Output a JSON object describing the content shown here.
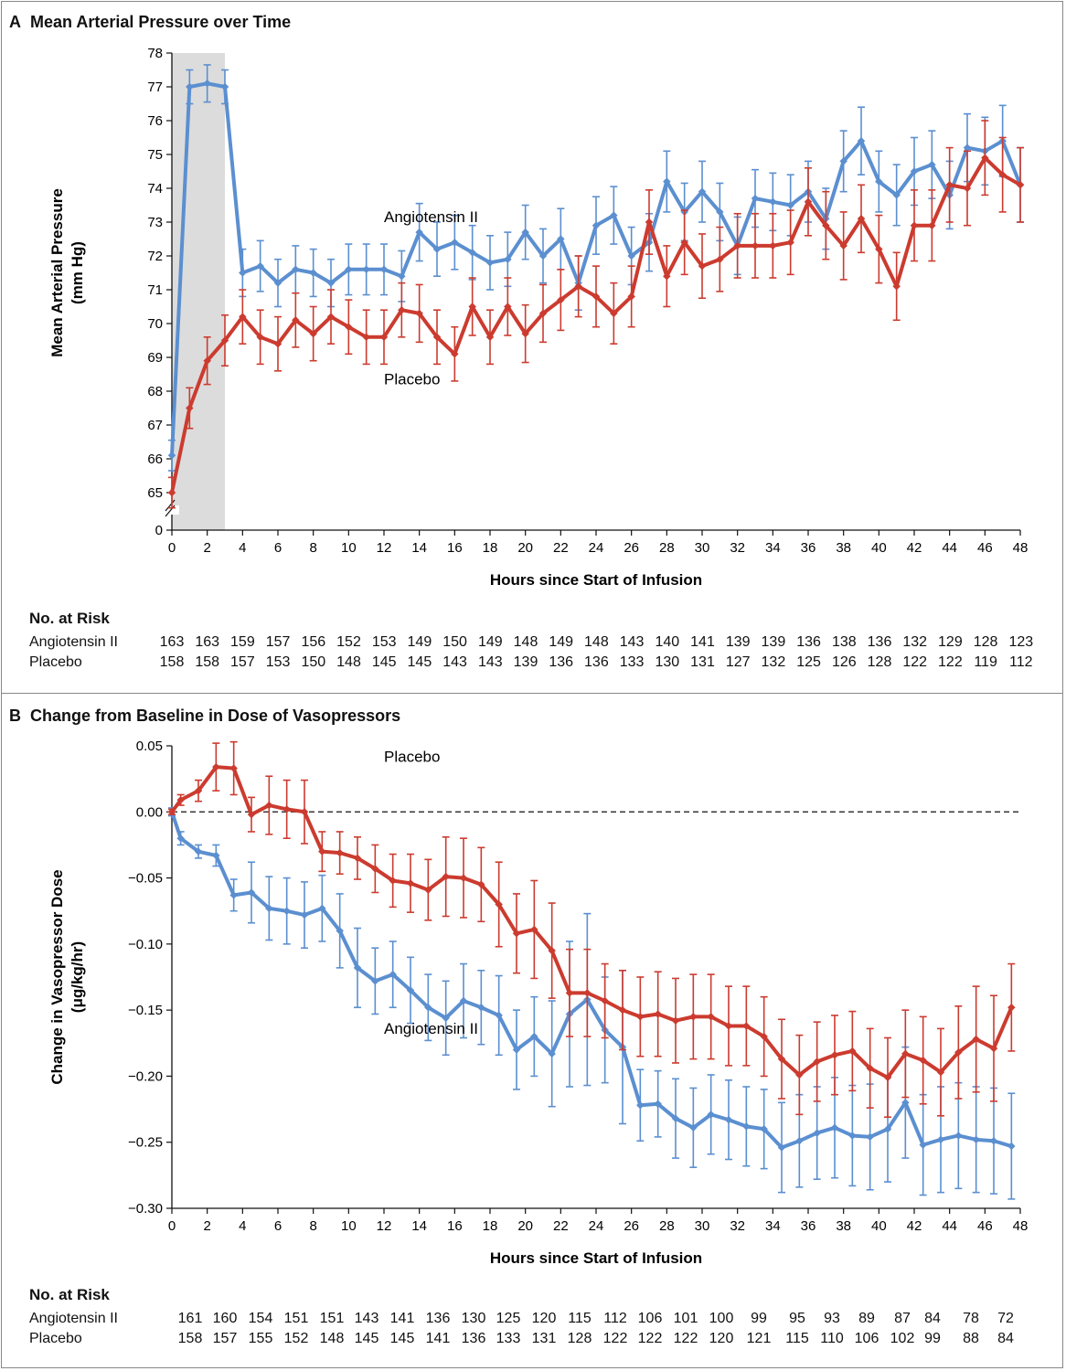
{
  "panels": {
    "A": {
      "letter": "A",
      "title": "Mean Arterial Pressure over Time",
      "risk_heading": "No. at Risk",
      "risk_rows": [
        {
          "name": "Angiotensin II",
          "values": [
            "163",
            "163",
            "159",
            "157",
            "156",
            "152",
            "153",
            "149",
            "150",
            "149",
            "148",
            "149",
            "148",
            "143",
            "140",
            "141",
            "139",
            "139",
            "136",
            "138",
            "136",
            "132",
            "129",
            "128",
            "123"
          ]
        },
        {
          "name": "Placebo",
          "values": [
            "158",
            "158",
            "157",
            "153",
            "150",
            "148",
            "145",
            "145",
            "143",
            "143",
            "139",
            "136",
            "136",
            "133",
            "130",
            "131",
            "127",
            "132",
            "125",
            "126",
            "128",
            "122",
            "122",
            "119",
            "112"
          ]
        }
      ]
    },
    "B": {
      "letter": "B",
      "title": "Change from Baseline in Dose of Vasopressors",
      "risk_heading": "No. at Risk",
      "risk_rows": [
        {
          "name": "Angiotensin II",
          "values": [
            "161",
            "160",
            "154",
            "151",
            "151",
            "143",
            "141",
            "136",
            "130",
            "125",
            "120",
            "115",
            "112",
            "106",
            "101",
            "100",
            "99",
            "95",
            "93",
            "89",
            "87",
            "84",
            "78",
            "72"
          ]
        },
        {
          "name": "Placebo",
          "values": [
            "158",
            "157",
            "155",
            "152",
            "148",
            "145",
            "145",
            "141",
            "136",
            "133",
            "131",
            "128",
            "122",
            "122",
            "122",
            "120",
            "121",
            "115",
            "110",
            "106",
            "102",
            "99",
            "88",
            "84"
          ]
        }
      ]
    }
  },
  "chart_data": [
    {
      "type": "line",
      "title": "Mean Arterial Pressure over Time",
      "xlabel": "Hours since Start of Infusion",
      "ylabel": "Mean Arterial Pressure (mm Hg)",
      "xlim": [
        0,
        48
      ],
      "ylim": [
        65,
        78
      ],
      "y_axis_break": true,
      "x_ticks": [
        0,
        2,
        4,
        6,
        8,
        10,
        12,
        14,
        16,
        18,
        20,
        22,
        24,
        26,
        28,
        30,
        32,
        34,
        36,
        38,
        40,
        42,
        44,
        46,
        48
      ],
      "y_ticks": [
        65,
        66,
        67,
        68,
        69,
        70,
        71,
        72,
        73,
        74,
        75,
        76,
        77,
        78
      ],
      "y_break_label": "0",
      "shaded_region_x": [
        0,
        3
      ],
      "series": [
        {
          "name": "Angiotensin II",
          "color": "#5b8fd0",
          "x": [
            0,
            1,
            2,
            3,
            4,
            5,
            6,
            7,
            8,
            9,
            10,
            11,
            12,
            13,
            14,
            15,
            16,
            17,
            18,
            19,
            20,
            21,
            22,
            23,
            24,
            25,
            26,
            27,
            28,
            29,
            30,
            31,
            32,
            33,
            34,
            35,
            36,
            37,
            38,
            39,
            40,
            41,
            42,
            43,
            44,
            45,
            46,
            47,
            48
          ],
          "y": [
            66.1,
            77.0,
            77.1,
            77.0,
            71.5,
            71.7,
            71.2,
            71.6,
            71.5,
            71.2,
            71.6,
            71.6,
            71.6,
            71.4,
            72.7,
            72.2,
            72.4,
            72.1,
            71.8,
            71.9,
            72.7,
            72.0,
            72.5,
            71.2,
            72.9,
            73.2,
            72.0,
            72.4,
            74.2,
            73.3,
            73.9,
            73.3,
            72.3,
            73.7,
            73.6,
            73.5,
            73.9,
            73.1,
            74.8,
            75.4,
            74.2,
            73.8,
            74.5,
            74.7,
            73.8,
            75.2,
            75.1,
            75.4,
            74.1
          ],
          "err": [
            0.45,
            0.5,
            0.55,
            0.5,
            0.7,
            0.75,
            0.7,
            0.7,
            0.7,
            0.7,
            0.75,
            0.75,
            0.75,
            0.75,
            0.85,
            0.8,
            0.8,
            0.8,
            0.8,
            0.8,
            0.8,
            0.8,
            0.9,
            0.8,
            0.85,
            0.85,
            0.85,
            0.85,
            0.9,
            0.85,
            0.9,
            0.85,
            0.85,
            0.85,
            0.85,
            0.9,
            0.9,
            0.9,
            0.9,
            1.0,
            0.9,
            0.9,
            1.0,
            1.0,
            1.0,
            1.0,
            1.0,
            1.05,
            1.1
          ]
        },
        {
          "name": "Placebo",
          "color": "#cc3b2f",
          "x": [
            0,
            1,
            2,
            3,
            4,
            5,
            6,
            7,
            8,
            9,
            10,
            11,
            12,
            13,
            14,
            15,
            16,
            17,
            18,
            19,
            20,
            21,
            22,
            23,
            24,
            25,
            26,
            27,
            28,
            29,
            30,
            31,
            32,
            33,
            34,
            35,
            36,
            37,
            38,
            39,
            40,
            41,
            42,
            43,
            44,
            45,
            46,
            47,
            48
          ],
          "y": [
            65.0,
            67.5,
            68.9,
            69.5,
            70.2,
            69.6,
            69.4,
            70.1,
            69.7,
            70.2,
            69.9,
            69.6,
            69.6,
            70.4,
            70.3,
            69.6,
            69.1,
            70.5,
            69.6,
            70.5,
            69.7,
            70.3,
            70.7,
            71.1,
            70.8,
            70.3,
            70.8,
            73.0,
            71.4,
            72.4,
            71.7,
            71.9,
            72.3,
            72.3,
            72.3,
            72.4,
            73.6,
            72.9,
            72.3,
            73.1,
            72.2,
            71.1,
            72.9,
            72.9,
            74.1,
            74.0,
            74.9,
            74.4,
            74.1
          ],
          "err": [
            0.45,
            0.6,
            0.7,
            0.75,
            0.8,
            0.8,
            0.8,
            0.8,
            0.8,
            0.8,
            0.8,
            0.8,
            0.8,
            0.8,
            0.85,
            0.8,
            0.8,
            0.85,
            0.8,
            0.85,
            0.85,
            0.85,
            0.9,
            0.9,
            0.9,
            0.9,
            0.9,
            0.95,
            0.9,
            0.95,
            0.95,
            0.95,
            0.95,
            0.95,
            0.95,
            0.95,
            1.0,
            1.0,
            1.0,
            1.0,
            1.0,
            1.0,
            1.05,
            1.05,
            1.1,
            1.1,
            1.1,
            1.1,
            1.1
          ]
        }
      ],
      "annotations": [
        {
          "text": "Angiotensin II",
          "x": 12,
          "y": 73.0
        },
        {
          "text": "Placebo",
          "x": 12,
          "y": 68.2
        }
      ]
    },
    {
      "type": "line",
      "title": "Change from Baseline in Dose of Vasopressors",
      "xlabel": "Hours since Start of Infusion",
      "ylabel": "Change in Vasopressor Dose (μg/kg/hr)",
      "xlim": [
        0,
        48
      ],
      "ylim": [
        -0.3,
        0.05
      ],
      "x_ticks": [
        0,
        2,
        4,
        6,
        8,
        10,
        12,
        14,
        16,
        18,
        20,
        22,
        24,
        26,
        28,
        30,
        32,
        34,
        36,
        38,
        40,
        42,
        44,
        46,
        48
      ],
      "y_ticks": [
        0.05,
        0.0,
        -0.05,
        -0.1,
        -0.15,
        -0.2,
        -0.25,
        -0.3
      ],
      "y_tick_labels": [
        "0.05",
        "0.00",
        "−0.05",
        "−0.10",
        "−0.15",
        "−0.20",
        "−0.25",
        "−0.30"
      ],
      "reference_line_y": 0,
      "series": [
        {
          "name": "Angiotensin II",
          "color": "#5b8fd0",
          "x": [
            0,
            0.5,
            1.5,
            2.5,
            3.5,
            4.5,
            5.5,
            6.5,
            7.5,
            8.5,
            9.5,
            10.5,
            11.5,
            12.5,
            13.5,
            14.5,
            15.5,
            16.5,
            17.5,
            18.5,
            19.5,
            20.5,
            21.5,
            22.5,
            23.5,
            24.5,
            25.5,
            26.5,
            27.5,
            28.5,
            29.5,
            30.5,
            31.5,
            32.5,
            33.5,
            34.5,
            35.5,
            36.5,
            37.5,
            38.5,
            39.5,
            40.5,
            41.5,
            42.5,
            43.5,
            44.5,
            45.5,
            46.5,
            47.5
          ],
          "y": [
            0,
            -0.02,
            -0.03,
            -0.033,
            -0.063,
            -0.061,
            -0.073,
            -0.075,
            -0.078,
            -0.073,
            -0.09,
            -0.118,
            -0.128,
            -0.123,
            -0.135,
            -0.148,
            -0.156,
            -0.143,
            -0.148,
            -0.154,
            -0.18,
            -0.17,
            -0.183,
            -0.153,
            -0.142,
            -0.165,
            -0.178,
            -0.222,
            -0.221,
            -0.232,
            -0.239,
            -0.229,
            -0.233,
            -0.238,
            -0.24,
            -0.254,
            -0.249,
            -0.243,
            -0.239,
            -0.245,
            -0.246,
            -0.24,
            -0.22,
            -0.252,
            -0.248,
            -0.245,
            -0.248,
            -0.249,
            -0.253
          ],
          "err": [
            0.003,
            0.005,
            0.005,
            0.008,
            0.012,
            0.023,
            0.024,
            0.025,
            0.025,
            0.025,
            0.028,
            0.03,
            0.025,
            0.025,
            0.025,
            0.025,
            0.028,
            0.028,
            0.028,
            0.03,
            0.03,
            0.03,
            0.04,
            0.055,
            0.065,
            0.04,
            0.058,
            0.027,
            0.025,
            0.03,
            0.03,
            0.03,
            0.03,
            0.03,
            0.03,
            0.034,
            0.035,
            0.035,
            0.038,
            0.038,
            0.04,
            0.04,
            0.042,
            0.038,
            0.04,
            0.04,
            0.04,
            0.04,
            0.04
          ]
        },
        {
          "name": "Placebo",
          "color": "#cc3b2f",
          "x": [
            0,
            0.5,
            1.5,
            2.5,
            3.5,
            4.5,
            5.5,
            6.5,
            7.5,
            8.5,
            9.5,
            10.5,
            11.5,
            12.5,
            13.5,
            14.5,
            15.5,
            16.5,
            17.5,
            18.5,
            19.5,
            20.5,
            21.5,
            22.5,
            23.5,
            24.5,
            25.5,
            26.5,
            27.5,
            28.5,
            29.5,
            30.5,
            31.5,
            32.5,
            33.5,
            34.5,
            35.5,
            36.5,
            37.5,
            38.5,
            39.5,
            40.5,
            41.5,
            42.5,
            43.5,
            44.5,
            45.5,
            46.5,
            47.5
          ],
          "y": [
            0,
            0.009,
            0.016,
            0.034,
            0.033,
            -0.002,
            0.005,
            0.002,
            0.0,
            -0.03,
            -0.031,
            -0.035,
            -0.043,
            -0.052,
            -0.054,
            -0.059,
            -0.049,
            -0.05,
            -0.055,
            -0.07,
            -0.092,
            -0.089,
            -0.105,
            -0.137,
            -0.137,
            -0.143,
            -0.15,
            -0.155,
            -0.153,
            -0.158,
            -0.155,
            -0.155,
            -0.162,
            -0.162,
            -0.17,
            -0.187,
            -0.199,
            -0.189,
            -0.184,
            -0.181,
            -0.194,
            -0.201,
            -0.183,
            -0.188,
            -0.197,
            -0.182,
            -0.172,
            -0.179,
            -0.148
          ],
          "err": [
            0.002,
            0.004,
            0.008,
            0.018,
            0.02,
            0.013,
            0.022,
            0.022,
            0.024,
            0.015,
            0.016,
            0.016,
            0.018,
            0.02,
            0.022,
            0.023,
            0.03,
            0.03,
            0.028,
            0.032,
            0.03,
            0.037,
            0.036,
            0.033,
            0.033,
            0.028,
            0.03,
            0.03,
            0.032,
            0.032,
            0.032,
            0.032,
            0.03,
            0.03,
            0.03,
            0.03,
            0.03,
            0.03,
            0.03,
            0.03,
            0.03,
            0.03,
            0.033,
            0.033,
            0.033,
            0.035,
            0.04,
            0.04,
            0.033
          ]
        }
      ],
      "annotations": [
        {
          "text": "Placebo",
          "x": 12,
          "y": 0.038
        },
        {
          "text": "Angiotensin II",
          "x": 12,
          "y": -0.168
        }
      ]
    }
  ]
}
